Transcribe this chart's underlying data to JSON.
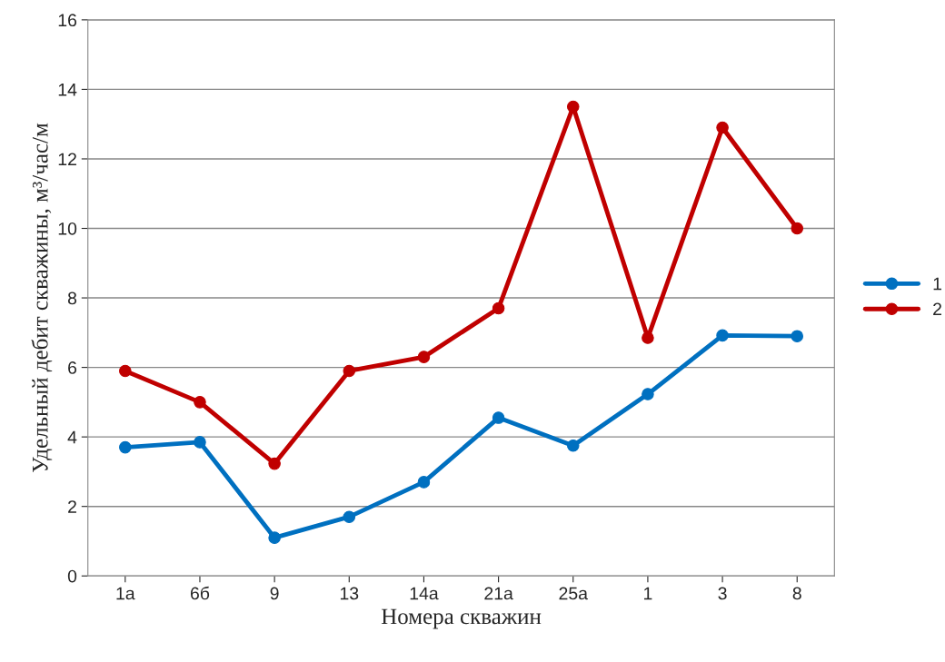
{
  "chart_data": {
    "type": "line",
    "xlabel": "Номера скважин",
    "ylabel": "Удельный дебит скважины, м³/час/м",
    "categories": [
      "1а",
      "6б",
      "9",
      "13",
      "14а",
      "21а",
      "25а",
      "1",
      "3",
      "8"
    ],
    "series": [
      {
        "name": "1",
        "color": "#0070c0",
        "values": [
          3.7,
          3.85,
          1.1,
          1.7,
          2.7,
          4.55,
          3.75,
          5.23,
          6.92,
          6.9
        ]
      },
      {
        "name": "2",
        "color": "#c00000",
        "values": [
          5.9,
          5.0,
          3.23,
          5.9,
          6.3,
          7.7,
          13.5,
          6.85,
          12.9,
          10.0
        ]
      }
    ],
    "ylim": [
      0,
      16
    ],
    "yticks": [
      0,
      2,
      4,
      6,
      8,
      10,
      12,
      14,
      16
    ],
    "grid": "y",
    "legend": "right",
    "marker": "circle",
    "line_style": "solid"
  }
}
